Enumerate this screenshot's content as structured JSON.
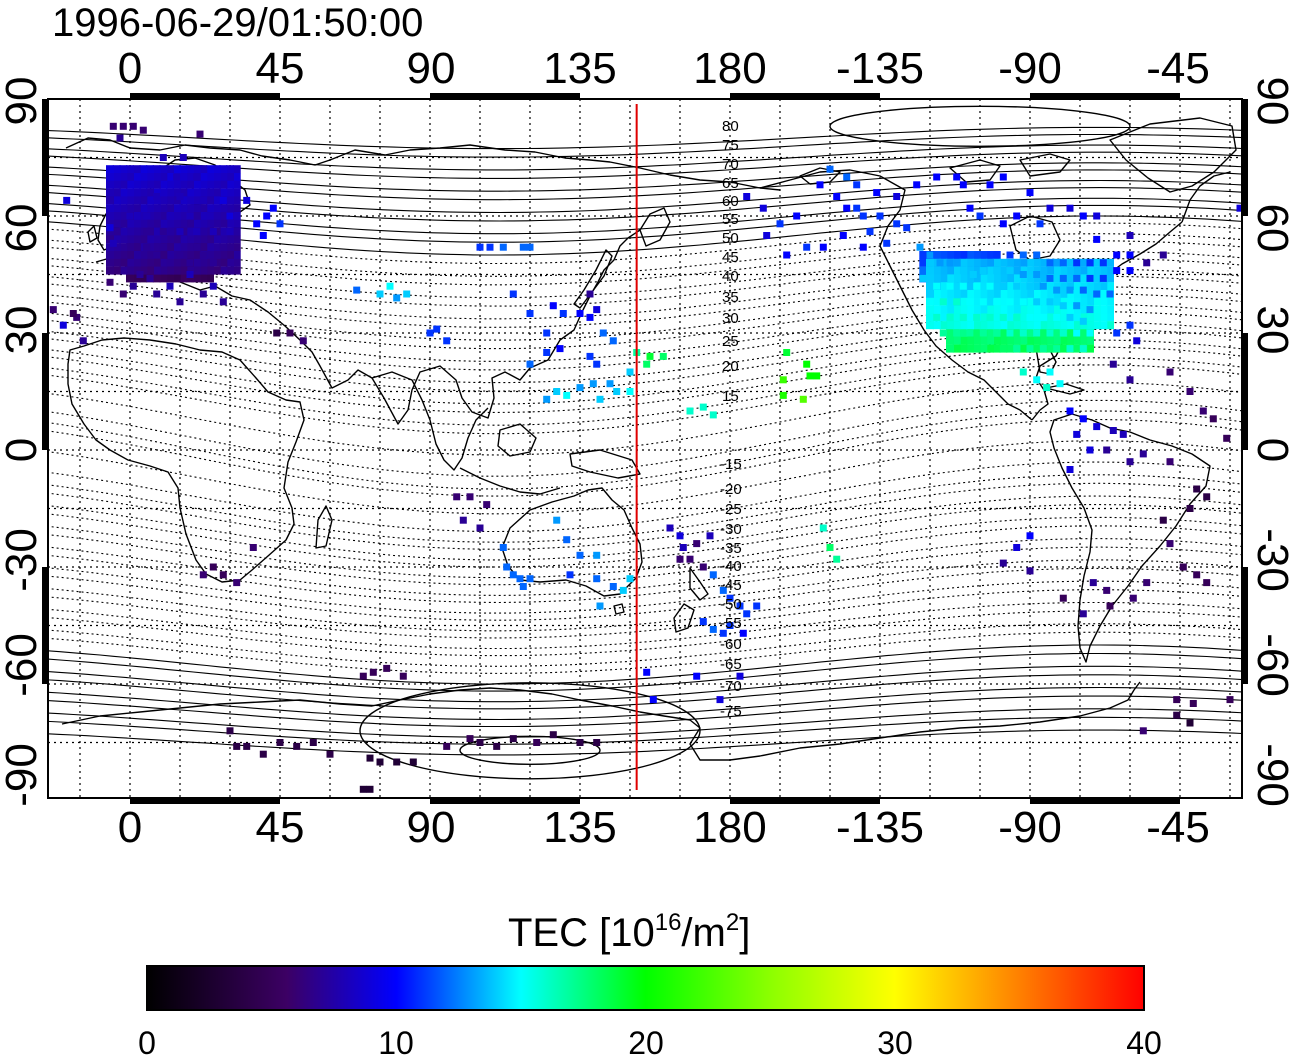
{
  "title": "1996-06-29/01:50:00",
  "map": {
    "projection": "equirectangular",
    "lon_range": [
      -25,
      335
    ],
    "lat_range": [
      -90,
      90
    ],
    "top_ticks": [
      "0",
      "45",
      "90",
      "135",
      "180",
      "-135",
      "-90",
      "-45"
    ],
    "bottom_ticks": [
      "0",
      "45",
      "90",
      "135",
      "180",
      "-135",
      "-90",
      "-45"
    ],
    "left_ticks": [
      "90",
      "60",
      "30",
      "0",
      "-30",
      "-60",
      "-90"
    ],
    "right_ticks": [
      "90",
      "60",
      "30",
      "0",
      "-30",
      "-60",
      "-90"
    ],
    "grid": "dotted every 15 degrees",
    "meridian_marker": {
      "lon": 152,
      "color": "#e00000"
    },
    "magnetic_lat_labels_north": [
      "80",
      "75",
      "70",
      "65",
      "60",
      "55",
      "50",
      "45",
      "40",
      "35",
      "30",
      "25",
      "20",
      "15"
    ],
    "magnetic_lat_labels_south": [
      "-15",
      "-20",
      "-25",
      "-30",
      "-35",
      "-40",
      "-45",
      "-50",
      "-55",
      "-60",
      "-65",
      "-70",
      "-75"
    ]
  },
  "colorbar": {
    "label_main": "TEC  [10",
    "label_sup1": "16",
    "label_mid": "/m",
    "label_sup2": "2",
    "label_end": "]",
    "min": 0,
    "max": 40,
    "ticks": [
      "0",
      "10",
      "20",
      "30",
      "40"
    ],
    "colors": [
      "#000000",
      "#3c0064",
      "#0000ff",
      "#00ffff",
      "#00ff00",
      "#ffff00",
      "#ff8000",
      "#ff0000"
    ]
  },
  "tec_points": [
    [
      -5,
      83,
      6
    ],
    [
      -2,
      83,
      6
    ],
    [
      1,
      83,
      6
    ],
    [
      -3,
      80,
      7
    ],
    [
      4,
      82,
      6
    ],
    [
      21,
      81,
      6
    ],
    [
      -19,
      64,
      9
    ],
    [
      -6,
      57,
      9
    ],
    [
      -5,
      53,
      8
    ],
    [
      5,
      52,
      7
    ],
    [
      8,
      50,
      7
    ],
    [
      10,
      52,
      7
    ],
    [
      12,
      48,
      7
    ],
    [
      15,
      50,
      7
    ],
    [
      18,
      48,
      7
    ],
    [
      20,
      52,
      7
    ],
    [
      22,
      50,
      7
    ],
    [
      25,
      48,
      7
    ],
    [
      28,
      52,
      7
    ],
    [
      5,
      56,
      7
    ],
    [
      10,
      56,
      7
    ],
    [
      15,
      56,
      8
    ],
    [
      20,
      56,
      8
    ],
    [
      25,
      56,
      8
    ],
    [
      30,
      56,
      8
    ],
    [
      12,
      60,
      8
    ],
    [
      18,
      60,
      8
    ],
    [
      24,
      60,
      8
    ],
    [
      30,
      60,
      9
    ],
    [
      8,
      65,
      8
    ],
    [
      15,
      65,
      8
    ],
    [
      22,
      64,
      8
    ],
    [
      28,
      64,
      9
    ],
    [
      35,
      64,
      9
    ],
    [
      14,
      70,
      8
    ],
    [
      20,
      70,
      8
    ],
    [
      10,
      75,
      8
    ],
    [
      16,
      75,
      8
    ],
    [
      5,
      60,
      8
    ],
    [
      0,
      60,
      8
    ],
    [
      38,
      58,
      10
    ],
    [
      41,
      60,
      10
    ],
    [
      40,
      55,
      10
    ],
    [
      43,
      62,
      10
    ],
    [
      45,
      58,
      11
    ],
    [
      -6,
      43,
      6
    ],
    [
      -2,
      40,
      6
    ],
    [
      1,
      42,
      7
    ],
    [
      3,
      45,
      7
    ],
    [
      6,
      44,
      7
    ],
    [
      8,
      40,
      7
    ],
    [
      12,
      42,
      8
    ],
    [
      15,
      38,
      7
    ],
    [
      18,
      45,
      8
    ],
    [
      22,
      40,
      7
    ],
    [
      25,
      42,
      8
    ],
    [
      28,
      38,
      7
    ],
    [
      -16,
      34,
      6
    ],
    [
      -14,
      28,
      7
    ],
    [
      -17,
      35,
      5
    ],
    [
      -20,
      32,
      9
    ],
    [
      -23,
      36,
      6
    ],
    [
      48,
      30,
      5
    ],
    [
      52,
      28,
      6
    ],
    [
      44,
      30,
      4
    ],
    [
      68,
      41,
      12
    ],
    [
      75,
      40,
      14
    ],
    [
      78,
      42,
      15
    ],
    [
      80,
      39,
      13
    ],
    [
      83,
      40,
      14
    ],
    [
      90,
      30,
      11
    ],
    [
      92,
      31,
      11
    ],
    [
      95,
      28,
      11
    ],
    [
      105,
      52,
      11
    ],
    [
      108,
      52,
      11
    ],
    [
      112,
      52,
      12
    ],
    [
      118,
      52,
      12
    ],
    [
      120,
      52,
      12
    ],
    [
      115,
      40,
      11
    ],
    [
      120,
      35,
      11
    ],
    [
      125,
      30,
      11
    ],
    [
      127,
      37,
      10
    ],
    [
      130,
      35,
      11
    ],
    [
      135,
      35,
      10
    ],
    [
      138,
      34,
      10
    ],
    [
      138,
      40,
      7
    ],
    [
      140,
      36,
      9
    ],
    [
      142,
      30,
      12
    ],
    [
      145,
      28,
      12
    ],
    [
      120,
      22,
      12
    ],
    [
      125,
      25,
      11
    ],
    [
      129,
      26,
      10
    ],
    [
      138,
      24,
      11
    ],
    [
      140,
      22,
      11
    ],
    [
      144,
      17,
      13
    ],
    [
      146,
      15,
      14
    ],
    [
      150,
      15,
      15
    ],
    [
      150,
      20,
      14
    ],
    [
      152,
      25,
      17
    ],
    [
      155,
      22,
      18
    ],
    [
      156,
      24,
      19
    ],
    [
      160,
      24,
      18
    ],
    [
      125,
      13,
      13
    ],
    [
      128,
      15,
      14
    ],
    [
      131,
      14,
      15
    ],
    [
      135,
      16,
      13
    ],
    [
      139,
      17,
      13
    ],
    [
      141,
      13,
      14
    ],
    [
      168,
      10,
      16
    ],
    [
      172,
      11,
      16
    ],
    [
      175,
      9,
      16
    ],
    [
      162,
      -20,
      8
    ],
    [
      165,
      -22,
      9
    ],
    [
      166,
      -25,
      8
    ],
    [
      170,
      -24,
      6
    ],
    [
      174,
      -22,
      8
    ],
    [
      165,
      -28,
      6
    ],
    [
      168,
      -28,
      6
    ],
    [
      172,
      -30,
      6
    ],
    [
      175,
      -32,
      12
    ],
    [
      178,
      -36,
      12
    ],
    [
      180,
      -38,
      11
    ],
    [
      183,
      -40,
      11
    ],
    [
      185,
      -42,
      11
    ],
    [
      188,
      -40,
      11
    ],
    [
      172,
      -44,
      11
    ],
    [
      175,
      -46,
      12
    ],
    [
      178,
      -47,
      11
    ],
    [
      180,
      -45,
      11
    ],
    [
      184,
      -47,
      10
    ],
    [
      170,
      -58,
      10
    ],
    [
      177,
      -64,
      9
    ],
    [
      183,
      -58,
      9
    ],
    [
      155,
      -57,
      10
    ],
    [
      157,
      -64,
      10
    ],
    [
      112,
      -25,
      12
    ],
    [
      113,
      -30,
      12
    ],
    [
      115,
      -32,
      12
    ],
    [
      117,
      -33,
      12
    ],
    [
      118,
      -35,
      12
    ],
    [
      120,
      -33,
      12
    ],
    [
      132,
      -32,
      11
    ],
    [
      135,
      -27,
      12
    ],
    [
      140,
      -27,
      13
    ],
    [
      140,
      -33,
      12
    ],
    [
      145,
      -35,
      12
    ],
    [
      148,
      -36,
      14
    ],
    [
      150,
      -33,
      14
    ],
    [
      141,
      -40,
      13
    ],
    [
      131,
      -23,
      12
    ],
    [
      128,
      -18,
      13
    ],
    [
      98,
      -12,
      6
    ],
    [
      102,
      -12,
      6
    ],
    [
      107,
      -14,
      6
    ],
    [
      105,
      -20,
      7
    ],
    [
      100,
      -18,
      7
    ],
    [
      25,
      -30,
      5
    ],
    [
      28,
      -32,
      5
    ],
    [
      22,
      -32,
      6
    ],
    [
      32,
      -34,
      6
    ],
    [
      37,
      -25,
      6
    ],
    [
      70,
      -58,
      5
    ],
    [
      73,
      -57,
      5
    ],
    [
      77,
      -56,
      5
    ],
    [
      82,
      -58,
      5
    ],
    [
      30,
      -72,
      4
    ],
    [
      32,
      -76,
      4
    ],
    [
      35,
      -76,
      4
    ],
    [
      40,
      -78,
      4
    ],
    [
      45,
      -75,
      4
    ],
    [
      50,
      -76,
      4
    ],
    [
      55,
      -75,
      4
    ],
    [
      60,
      -78,
      4
    ],
    [
      72,
      -79,
      3
    ],
    [
      75,
      -80,
      3
    ],
    [
      80,
      -80,
      3
    ],
    [
      85,
      -80,
      3
    ],
    [
      95,
      -76,
      5
    ],
    [
      102,
      -74,
      5
    ],
    [
      105,
      -75,
      4
    ],
    [
      110,
      -76,
      4
    ],
    [
      115,
      -74,
      4
    ],
    [
      122,
      -75,
      5
    ],
    [
      127,
      -73,
      4
    ],
    [
      135,
      -75,
      4
    ],
    [
      140,
      -75,
      4
    ],
    [
      70,
      -87,
      3
    ],
    [
      72,
      -87,
      3
    ],
    [
      208,
      -20,
      16
    ],
    [
      210,
      -25,
      18
    ],
    [
      212,
      -28,
      17
    ],
    [
      197,
      25,
      19
    ],
    [
      203,
      22,
      20
    ],
    [
      206,
      19,
      20
    ],
    [
      204,
      19,
      20
    ],
    [
      196,
      18,
      22
    ],
    [
      202,
      13,
      23
    ],
    [
      196,
      14,
      21
    ],
    [
      224,
      66,
      10
    ],
    [
      230,
      65,
      9
    ],
    [
      236,
      68,
      10
    ],
    [
      242,
      70,
      10
    ],
    [
      248,
      70,
      10
    ],
    [
      250,
      68,
      10
    ],
    [
      258,
      68,
      10
    ],
    [
      262,
      70,
      10
    ],
    [
      270,
      66,
      10
    ],
    [
      276,
      62,
      9
    ],
    [
      282,
      62,
      9
    ],
    [
      286,
      60,
      10
    ],
    [
      290,
      60,
      9
    ],
    [
      252,
      62,
      10
    ],
    [
      255,
      60,
      11
    ],
    [
      262,
      58,
      10
    ],
    [
      266,
      60,
      10
    ],
    [
      273,
      58,
      11
    ],
    [
      207,
      68,
      10
    ],
    [
      212,
      65,
      10
    ],
    [
      215,
      62,
      10
    ],
    [
      218,
      62,
      11
    ],
    [
      220,
      60,
      11
    ],
    [
      225,
      60,
      11
    ],
    [
      230,
      58,
      11
    ],
    [
      233,
      57,
      11
    ],
    [
      222,
      56,
      11
    ],
    [
      227,
      53,
      11
    ],
    [
      210,
      72,
      12
    ],
    [
      215,
      70,
      12
    ],
    [
      218,
      68,
      11
    ],
    [
      185,
      65,
      9
    ],
    [
      190,
      62,
      9
    ],
    [
      195,
      58,
      11
    ],
    [
      200,
      60,
      10
    ],
    [
      203,
      52,
      11
    ],
    [
      208,
      52,
      10
    ],
    [
      214,
      55,
      10
    ],
    [
      220,
      52,
      10
    ],
    [
      191,
      55,
      9
    ],
    [
      197,
      50,
      10
    ],
    [
      237,
      52,
      13
    ],
    [
      240,
      50,
      13
    ],
    [
      243,
      48,
      13
    ],
    [
      246,
      48,
      13
    ],
    [
      250,
      46,
      14
    ],
    [
      253,
      45,
      14
    ],
    [
      256,
      46,
      14
    ],
    [
      260,
      46,
      14
    ],
    [
      264,
      46,
      14
    ],
    [
      268,
      45,
      13
    ],
    [
      272,
      45,
      13
    ],
    [
      276,
      44,
      12
    ],
    [
      280,
      44,
      12
    ],
    [
      284,
      44,
      12
    ],
    [
      288,
      44,
      11
    ],
    [
      292,
      44,
      11
    ],
    [
      296,
      46,
      10
    ],
    [
      300,
      46,
      10
    ],
    [
      238,
      44,
      14
    ],
    [
      242,
      42,
      15
    ],
    [
      246,
      42,
      15
    ],
    [
      250,
      42,
      15
    ],
    [
      254,
      42,
      15
    ],
    [
      258,
      42,
      15
    ],
    [
      262,
      42,
      14
    ],
    [
      266,
      42,
      14
    ],
    [
      270,
      42,
      14
    ],
    [
      274,
      42,
      13
    ],
    [
      278,
      41,
      13
    ],
    [
      282,
      41,
      13
    ],
    [
      286,
      41,
      12
    ],
    [
      290,
      40,
      12
    ],
    [
      294,
      40,
      12
    ],
    [
      240,
      38,
      15
    ],
    [
      244,
      38,
      16
    ],
    [
      248,
      38,
      16
    ],
    [
      252,
      38,
      15
    ],
    [
      256,
      38,
      15
    ],
    [
      260,
      38,
      15
    ],
    [
      264,
      38,
      15
    ],
    [
      268,
      38,
      15
    ],
    [
      272,
      38,
      14
    ],
    [
      276,
      38,
      14
    ],
    [
      280,
      37,
      14
    ],
    [
      284,
      37,
      13
    ],
    [
      288,
      36,
      13
    ],
    [
      242,
      34,
      16
    ],
    [
      246,
      34,
      16
    ],
    [
      250,
      34,
      16
    ],
    [
      254,
      34,
      16
    ],
    [
      258,
      34,
      16
    ],
    [
      262,
      34,
      16
    ],
    [
      266,
      34,
      16
    ],
    [
      270,
      34,
      15
    ],
    [
      274,
      34,
      15
    ],
    [
      278,
      34,
      15
    ],
    [
      282,
      34,
      14
    ],
    [
      286,
      33,
      14
    ],
    [
      244,
      30,
      17
    ],
    [
      248,
      30,
      17
    ],
    [
      252,
      30,
      17
    ],
    [
      256,
      30,
      17
    ],
    [
      260,
      30,
      17
    ],
    [
      264,
      30,
      16
    ],
    [
      268,
      30,
      16
    ],
    [
      272,
      30,
      16
    ],
    [
      276,
      30,
      16
    ],
    [
      280,
      30,
      16
    ],
    [
      284,
      30,
      15
    ],
    [
      288,
      30,
      15
    ],
    [
      262,
      26,
      18
    ],
    [
      266,
      26,
      17
    ],
    [
      270,
      26,
      17
    ],
    [
      274,
      26,
      17
    ],
    [
      278,
      26,
      17
    ],
    [
      282,
      26,
      16
    ],
    [
      286,
      26,
      16
    ],
    [
      268,
      20,
      16
    ],
    [
      272,
      18,
      15
    ],
    [
      276,
      20,
      15
    ],
    [
      275,
      16,
      16
    ],
    [
      279,
      17,
      15
    ],
    [
      260,
      50,
      11
    ],
    [
      264,
      50,
      11
    ],
    [
      268,
      50,
      12
    ],
    [
      272,
      50,
      12
    ],
    [
      276,
      48,
      12
    ],
    [
      280,
      48,
      12
    ],
    [
      284,
      48,
      11
    ],
    [
      288,
      48,
      11
    ],
    [
      292,
      48,
      11
    ],
    [
      296,
      50,
      10
    ],
    [
      300,
      50,
      10
    ],
    [
      290,
      54,
      10
    ],
    [
      300,
      55,
      8
    ],
    [
      305,
      48,
      7
    ],
    [
      310,
      50,
      7
    ],
    [
      296,
      30,
      11
    ],
    [
      300,
      32,
      11
    ],
    [
      302,
      28,
      9
    ],
    [
      295,
      22,
      7
    ],
    [
      300,
      18,
      7
    ],
    [
      312,
      20,
      6
    ],
    [
      318,
      15,
      6
    ],
    [
      322,
      10,
      6
    ],
    [
      325,
      8,
      5
    ],
    [
      329,
      3,
      5
    ],
    [
      335,
      5,
      5
    ],
    [
      282,
      10,
      10
    ],
    [
      286,
      8,
      10
    ],
    [
      290,
      6,
      9
    ],
    [
      295,
      5,
      8
    ],
    [
      298,
      4,
      8
    ],
    [
      284,
      4,
      9
    ],
    [
      288,
      0,
      9
    ],
    [
      282,
      -5,
      9
    ],
    [
      293,
      0,
      7
    ],
    [
      300,
      -3,
      7
    ],
    [
      304,
      -1,
      7
    ],
    [
      312,
      -3,
      6
    ],
    [
      320,
      -10,
      4
    ],
    [
      323,
      -12,
      4
    ],
    [
      318,
      -15,
      4
    ],
    [
      310,
      -18,
      4
    ],
    [
      312,
      -24,
      6
    ],
    [
      316,
      -30,
      5
    ],
    [
      320,
      -32,
      5
    ],
    [
      323,
      -34,
      5
    ],
    [
      305,
      -34,
      6
    ],
    [
      301,
      -38,
      6
    ],
    [
      293,
      -36,
      6
    ],
    [
      289,
      -34,
      7
    ],
    [
      286,
      -42,
      7
    ],
    [
      294,
      -40,
      5
    ],
    [
      280,
      -38,
      5
    ],
    [
      270,
      -22,
      10
    ],
    [
      266,
      -25,
      9
    ],
    [
      262,
      -29,
      7
    ],
    [
      270,
      -31,
      7
    ],
    [
      314,
      -64,
      5
    ],
    [
      319,
      -65,
      5
    ],
    [
      314,
      -68,
      4
    ],
    [
      318,
      -70,
      3
    ],
    [
      304,
      -72,
      6
    ],
    [
      336,
      64,
      10
    ],
    [
      333,
      62,
      9
    ],
    [
      330,
      -64,
      5
    ],
    [
      335,
      -65,
      5
    ]
  ]
}
